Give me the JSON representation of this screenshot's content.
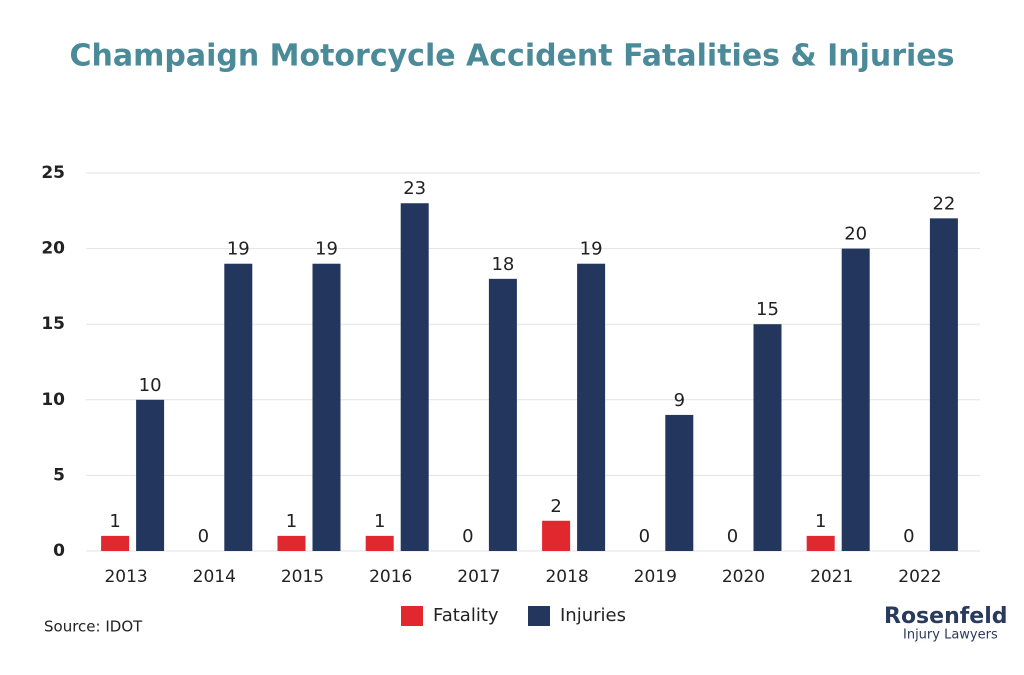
{
  "chart_data": {
    "type": "bar",
    "title": "Champaign  Motorcycle Accident Fatalities & Injuries",
    "categories": [
      "2013",
      "2014",
      "2015",
      "2016",
      "2017",
      "2018",
      "2019",
      "2020",
      "2021",
      "2022"
    ],
    "series": [
      {
        "name": "Fatality",
        "color": "#e0282e",
        "values": [
          1,
          0,
          1,
          1,
          0,
          2,
          0,
          0,
          1,
          0
        ]
      },
      {
        "name": "Injuries",
        "color": "#22365e",
        "values": [
          10,
          19,
          19,
          23,
          18,
          19,
          9,
          15,
          20,
          22
        ]
      }
    ],
    "ylim": [
      0,
      25
    ],
    "yticks": [
      0,
      5,
      10,
      15,
      20,
      25
    ],
    "grid": true,
    "legend": "bottom",
    "source": "Source: IDOT",
    "logo": {
      "name": "Rosenfeld",
      "tagline": "Injury Lawyers"
    }
  }
}
